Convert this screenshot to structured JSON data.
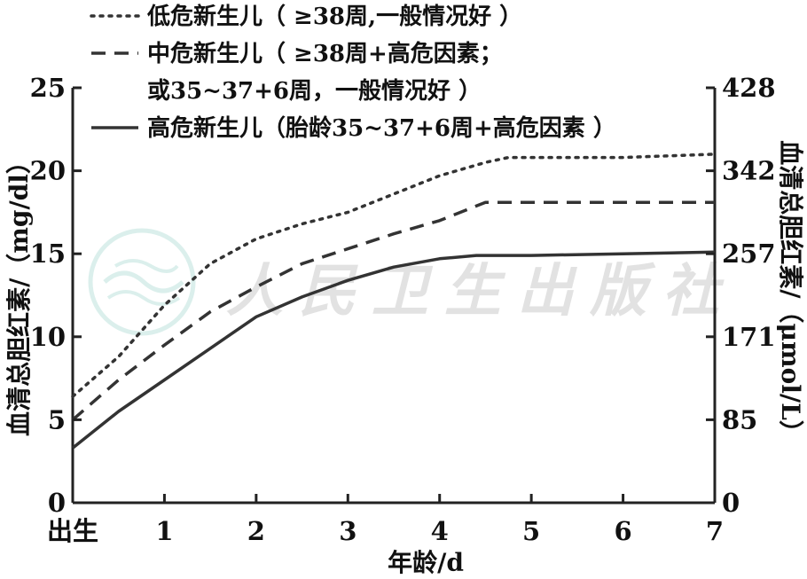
{
  "chart_data": {
    "type": "line",
    "x_label": "年龄/d",
    "x_ticks": [
      {
        "value": 0,
        "label": "出生"
      },
      {
        "value": 1,
        "label": "1"
      },
      {
        "value": 2,
        "label": "2"
      },
      {
        "value": 3,
        "label": "3"
      },
      {
        "value": 4,
        "label": "4"
      },
      {
        "value": 5,
        "label": "5"
      },
      {
        "value": 6,
        "label": "6"
      },
      {
        "value": 7,
        "label": "7"
      }
    ],
    "xlim": [
      0,
      7
    ],
    "y_left": {
      "label": "血清总胆红素/（mg/dl）",
      "ylim": [
        0,
        25
      ],
      "ticks": [
        0,
        5,
        10,
        15,
        20,
        25
      ]
    },
    "y_right": {
      "label": "血清总胆红素/（μmol/L）",
      "tick_labels": [
        "0",
        "85",
        "171",
        "257",
        "342",
        "428"
      ]
    },
    "legend_position": "top-left",
    "series": [
      {
        "name": "低危新生儿（≥38周,一般情况好）",
        "style": "dotted",
        "color": "#333333",
        "points": [
          [
            0,
            6.4
          ],
          [
            0.5,
            8.8
          ],
          [
            1,
            11.9
          ],
          [
            1.5,
            14.4
          ],
          [
            2,
            15.9
          ],
          [
            2.5,
            16.8
          ],
          [
            3,
            17.5
          ],
          [
            3.5,
            18.6
          ],
          [
            4,
            19.7
          ],
          [
            4.5,
            20.5
          ],
          [
            4.75,
            20.8
          ],
          [
            5,
            20.8
          ],
          [
            6,
            20.8
          ],
          [
            7,
            21.0
          ]
        ]
      },
      {
        "name": "中危新生儿（≥38周+高危因素；或35~37+6周，一般情况好）",
        "style": "dashed",
        "color": "#333333",
        "points": [
          [
            0,
            5.0
          ],
          [
            0.5,
            7.4
          ],
          [
            1,
            9.5
          ],
          [
            1.5,
            11.5
          ],
          [
            2,
            13.0
          ],
          [
            2.5,
            14.4
          ],
          [
            3,
            15.3
          ],
          [
            3.5,
            16.2
          ],
          [
            4,
            17.0
          ],
          [
            4.5,
            18.1
          ],
          [
            5,
            18.1
          ],
          [
            6,
            18.1
          ],
          [
            7,
            18.1
          ]
        ]
      },
      {
        "name": "高危新生儿（胎龄35~37+6周+高危因素）",
        "style": "solid",
        "color": "#333333",
        "points": [
          [
            0,
            3.3
          ],
          [
            0.5,
            5.5
          ],
          [
            1,
            7.4
          ],
          [
            1.5,
            9.3
          ],
          [
            2,
            11.2
          ],
          [
            2.5,
            12.4
          ],
          [
            3,
            13.4
          ],
          [
            3.5,
            14.2
          ],
          [
            4,
            14.7
          ],
          [
            4.4,
            14.9
          ],
          [
            5,
            14.9
          ],
          [
            6,
            15.0
          ],
          [
            7,
            15.1
          ]
        ]
      }
    ]
  },
  "legend": [
    {
      "key": "low",
      "style": "dotted",
      "lines": [
        "低危新生儿（ ≥38周,一般情况好 ）"
      ]
    },
    {
      "key": "mid",
      "style": "dashed",
      "lines": [
        "中危新生儿（ ≥38周+高危因素；",
        "或35~37+6周，一般情况好 ）"
      ]
    },
    {
      "key": "high",
      "style": "solid",
      "lines": [
        "高危新生儿（胎龄35~37+6周+高危因素 ）"
      ]
    }
  ],
  "watermark": {
    "text": "人民卫生出版社"
  }
}
